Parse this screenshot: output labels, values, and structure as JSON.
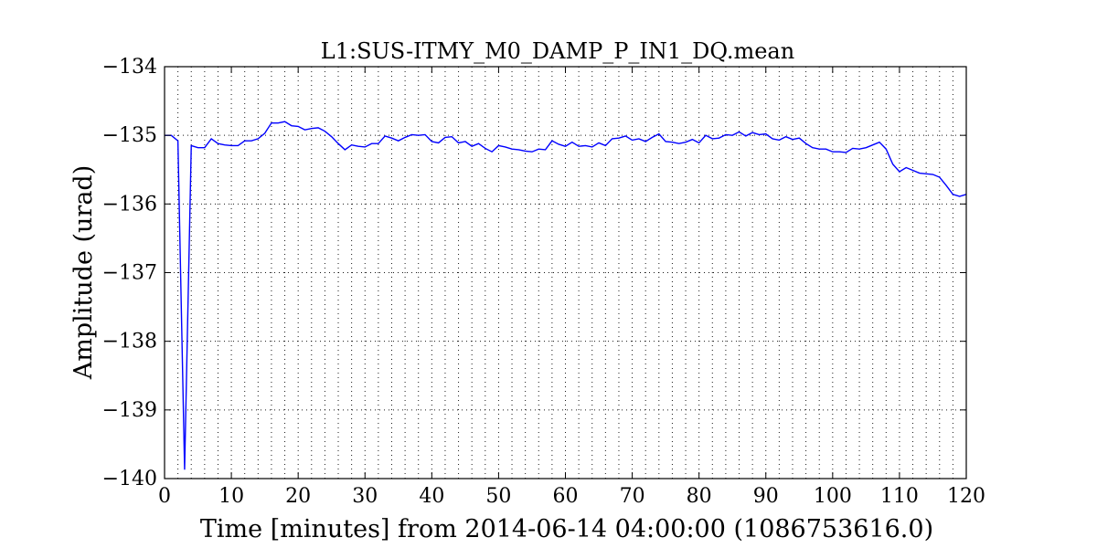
{
  "chart_data": {
    "type": "line",
    "title": "L1:SUS-ITMY_M0_DAMP_P_IN1_DQ.mean",
    "xlabel": "Time [minutes] from 2014-06-14 04:00:00 (1086753616.0)",
    "ylabel": "Amplitude (urad)",
    "xlim": [
      0,
      120
    ],
    "ylim": [
      -140,
      -134
    ],
    "xticks": [
      0,
      10,
      20,
      30,
      40,
      50,
      60,
      70,
      80,
      90,
      100,
      110,
      120
    ],
    "xtick_labels": [
      "0",
      "10",
      "20",
      "30",
      "40",
      "50",
      "60",
      "70",
      "80",
      "90",
      "100",
      "110",
      "120"
    ],
    "yticks": [
      -140,
      -139,
      -138,
      -137,
      -136,
      -135,
      -134
    ],
    "ytick_labels": [
      "−140",
      "−139",
      "−138",
      "−137",
      "−136",
      "−135",
      "−134"
    ],
    "grid": true,
    "minor_x_grid_step": 2,
    "series_color": "#0000ff",
    "series": [
      {
        "x": [
          0,
          1,
          2,
          3,
          4,
          5,
          6,
          7,
          8,
          9,
          10,
          11,
          12,
          13,
          14,
          15,
          16,
          17,
          18,
          19,
          20,
          21,
          22,
          23,
          24,
          25,
          26,
          27,
          28,
          29,
          30,
          31,
          32,
          33,
          34,
          35,
          36,
          37,
          38,
          39,
          40,
          41,
          42,
          43,
          44,
          45,
          46,
          47,
          48,
          49,
          50,
          51,
          52,
          53,
          54,
          55,
          56,
          57,
          58,
          59,
          60,
          61,
          62,
          63,
          64,
          65,
          66,
          67,
          68,
          69,
          70,
          71,
          72,
          73,
          74,
          75,
          76,
          77,
          78,
          79,
          80,
          81,
          82,
          83,
          84,
          85,
          86,
          87,
          88,
          89,
          90,
          91,
          92,
          93,
          94,
          95,
          96,
          97,
          98,
          99,
          100,
          101,
          102,
          103,
          104,
          105,
          106,
          107,
          108,
          109,
          110,
          111,
          112,
          113,
          114,
          115,
          116,
          117,
          118,
          119,
          120
        ],
        "values": [
          -135.0,
          -135.0,
          -135.08,
          -139.87,
          -135.15,
          -135.18,
          -135.18,
          -135.05,
          -135.12,
          -135.14,
          -135.15,
          -135.15,
          -135.08,
          -135.08,
          -135.05,
          -134.97,
          -134.82,
          -134.82,
          -134.8,
          -134.86,
          -134.87,
          -134.92,
          -134.9,
          -134.89,
          -134.94,
          -135.02,
          -135.12,
          -135.21,
          -135.14,
          -135.16,
          -135.17,
          -135.12,
          -135.12,
          -135.01,
          -135.04,
          -135.08,
          -135.03,
          -134.99,
          -135.0,
          -134.99,
          -135.09,
          -135.11,
          -135.03,
          -135.02,
          -135.11,
          -135.09,
          -135.16,
          -135.12,
          -135.19,
          -135.24,
          -135.15,
          -135.17,
          -135.2,
          -135.21,
          -135.23,
          -135.24,
          -135.2,
          -135.21,
          -135.08,
          -135.13,
          -135.16,
          -135.1,
          -135.16,
          -135.15,
          -135.17,
          -135.11,
          -135.15,
          -135.05,
          -135.04,
          -135.01,
          -135.07,
          -135.05,
          -135.09,
          -135.03,
          -134.98,
          -135.09,
          -135.1,
          -135.12,
          -135.1,
          -135.06,
          -135.11,
          -135.0,
          -135.05,
          -135.04,
          -134.99,
          -135.0,
          -134.95,
          -135.01,
          -134.96,
          -134.99,
          -134.98,
          -135.05,
          -135.07,
          -135.02,
          -135.06,
          -135.04,
          -135.12,
          -135.18,
          -135.2,
          -135.2,
          -135.24,
          -135.24,
          -135.25,
          -135.19,
          -135.2,
          -135.18,
          -135.14,
          -135.1,
          -135.2,
          -135.42,
          -135.53,
          -135.47,
          -135.51,
          -135.55,
          -135.56,
          -135.57,
          -135.61,
          -135.73,
          -135.86,
          -135.89,
          -135.86
        ]
      }
    ]
  }
}
